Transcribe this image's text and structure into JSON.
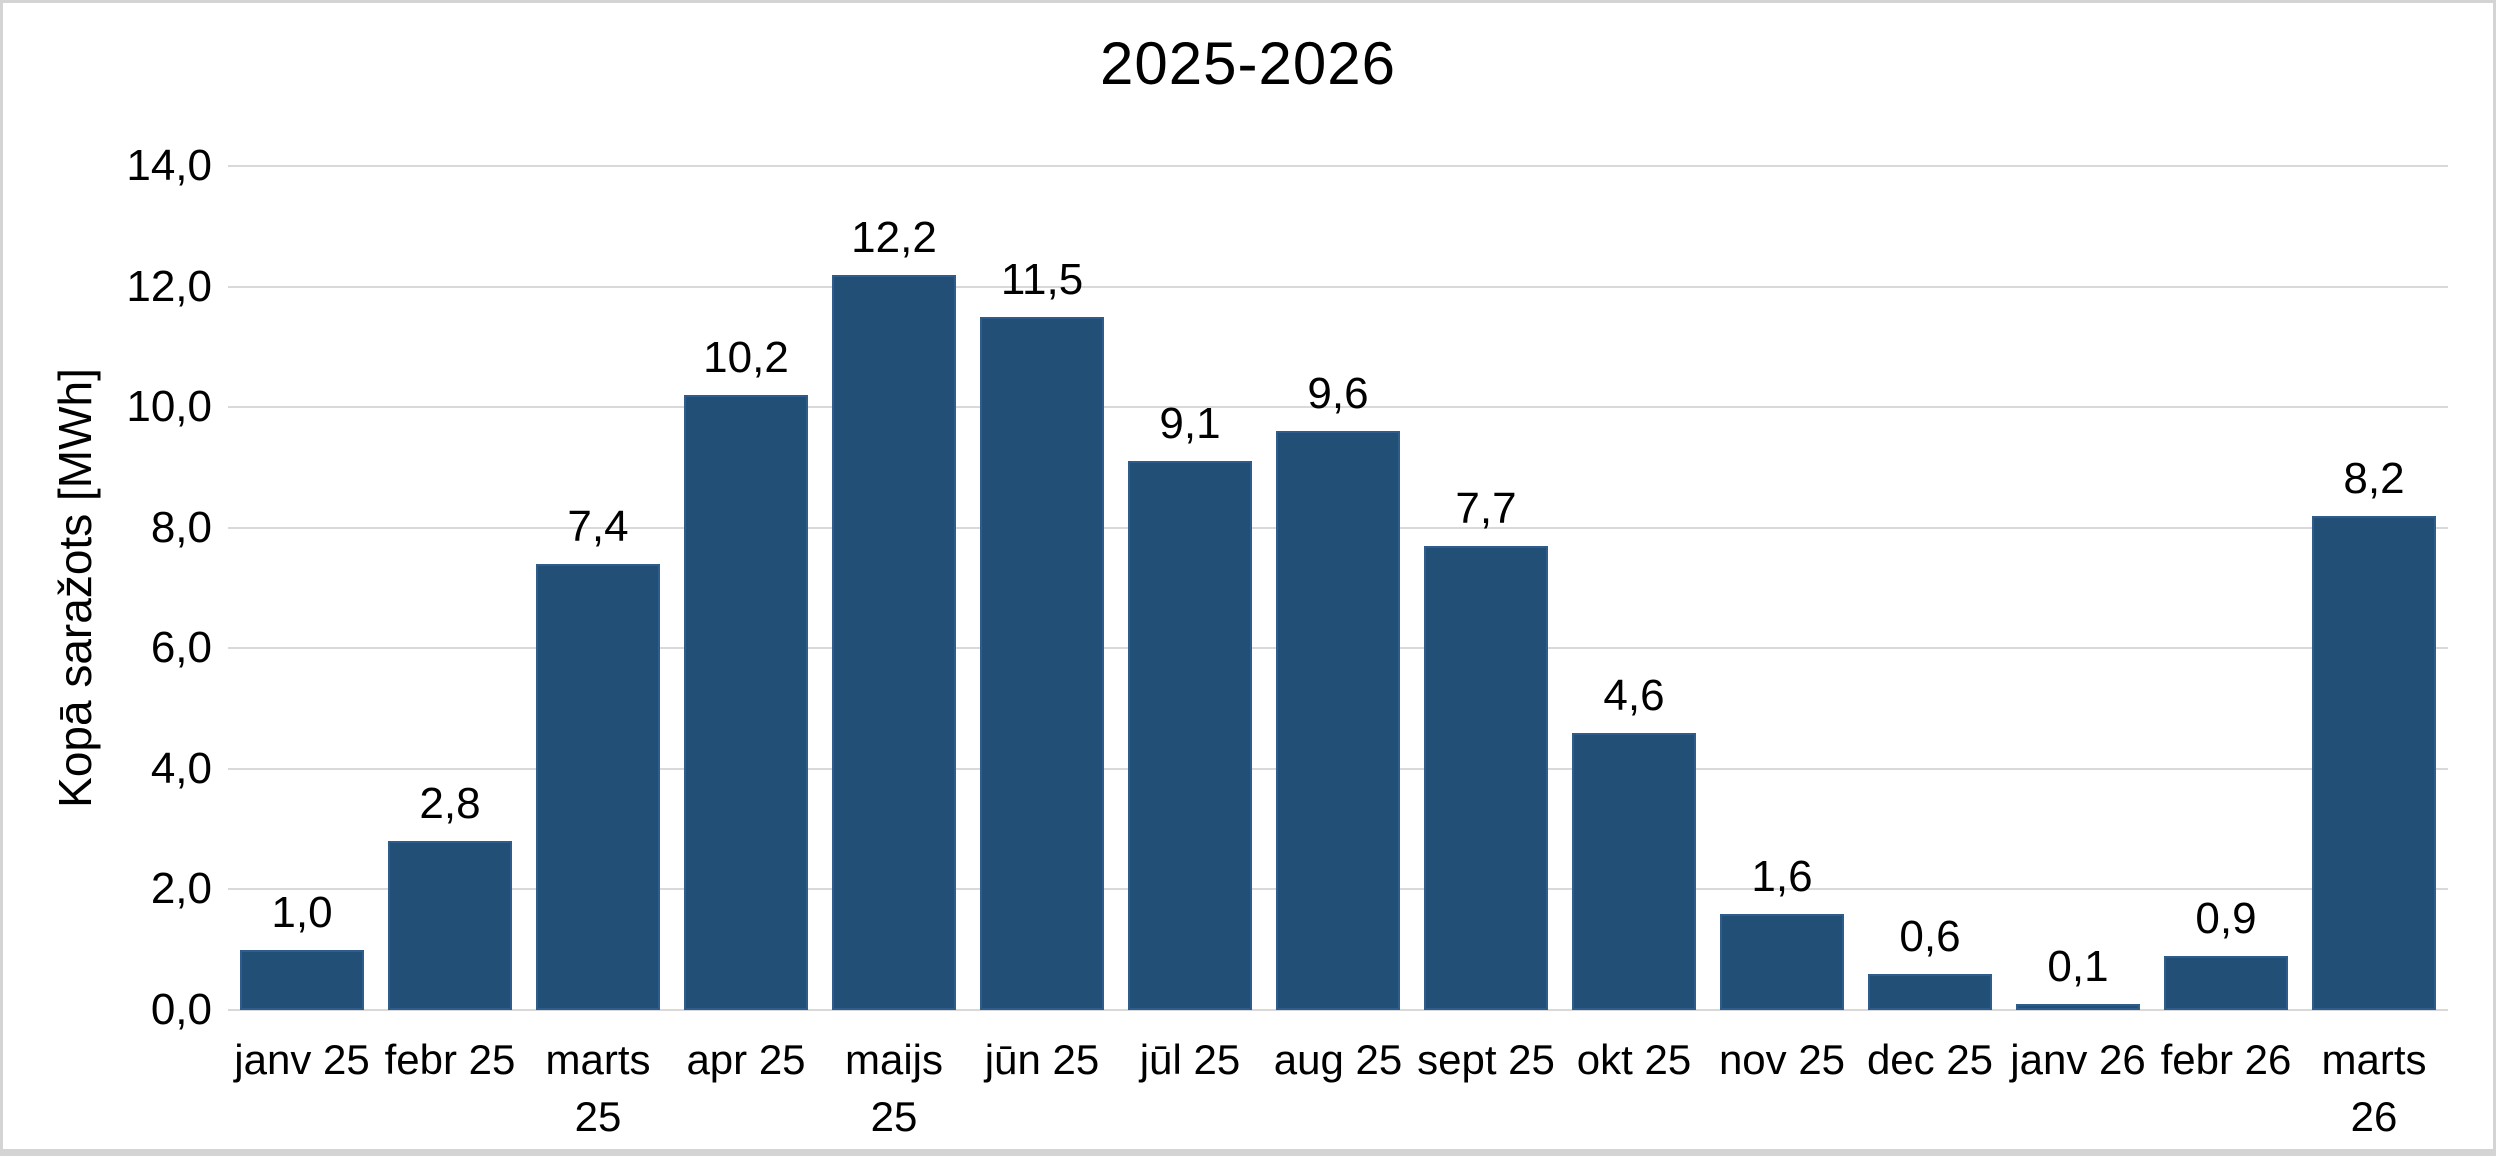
{
  "chart_data": {
    "type": "bar",
    "title": "2025-2026",
    "xlabel": "",
    "ylabel": "Kopā saražots [MWh]",
    "categories": [
      "janv 25",
      "febr 25",
      "marts 25",
      "apr 25",
      "maijs 25",
      "jūn 25",
      "jūl 25",
      "aug 25",
      "sept 25",
      "okt 25",
      "nov 25",
      "dec 25",
      "janv 26",
      "febr 26",
      "marts 26"
    ],
    "values": [
      1.0,
      2.8,
      7.4,
      10.2,
      12.2,
      11.5,
      9.1,
      9.6,
      7.7,
      4.6,
      1.6,
      0.6,
      0.1,
      0.9,
      8.2
    ],
    "value_labels": [
      "1,0",
      "2,8",
      "7,4",
      "10,2",
      "12,2",
      "11,5",
      "9,1",
      "9,6",
      "7,7",
      "4,6",
      "1,6",
      "0,6",
      "0,1",
      "0,9",
      "8,2"
    ],
    "ylim": [
      0,
      14
    ],
    "ytick_step": 2,
    "ytick_labels": [
      "0,0",
      "2,0",
      "4,0",
      "6,0",
      "8,0",
      "10,0",
      "12,0",
      "14,0"
    ],
    "grid": true,
    "legend_position": "none",
    "bar_color": "#214f76",
    "bar_border_color": "#2e5c8c",
    "gridline_color": "#d9d9d9",
    "axis_line_color": "#d9d9d9",
    "text_color": "#000000",
    "background_color": "#ffffff",
    "frame_border_color": "#d4d4d4"
  }
}
